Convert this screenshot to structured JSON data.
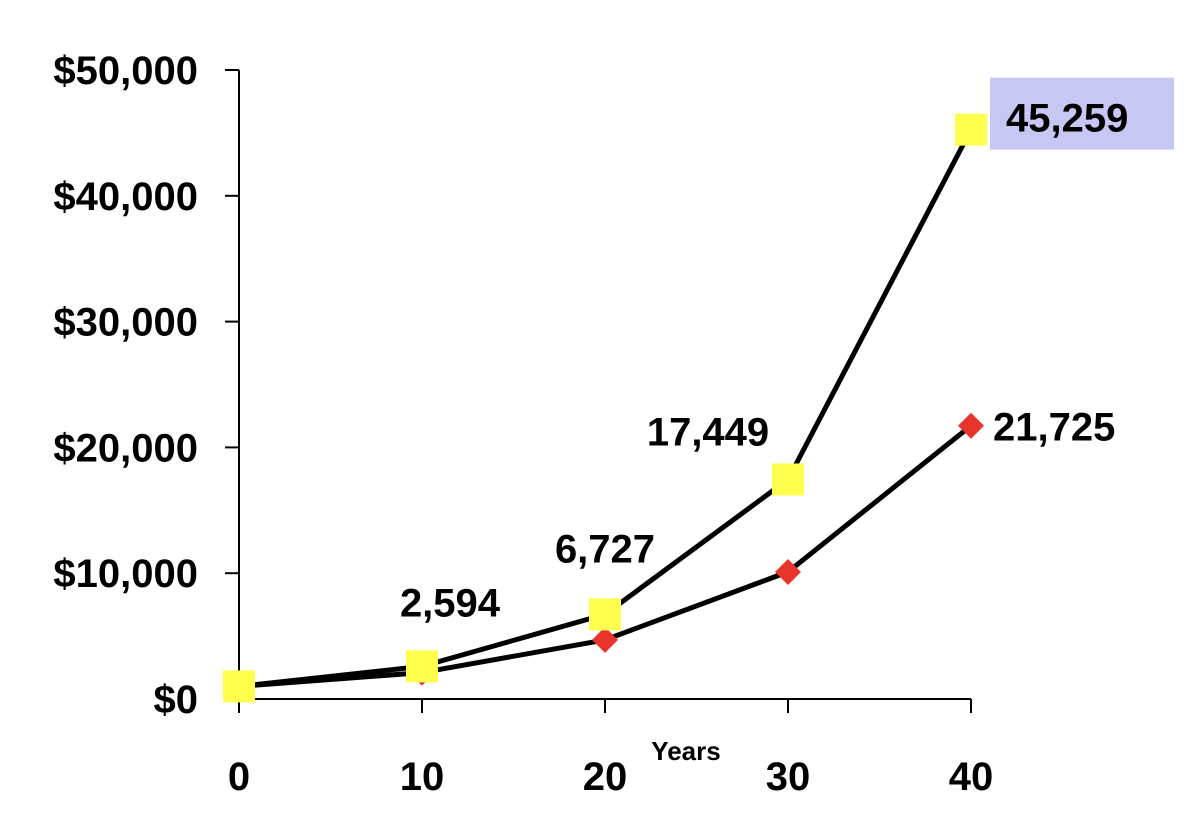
{
  "chart_data": {
    "type": "line",
    "title": "",
    "xlabel": "Years",
    "ylabel": "",
    "x": [
      0,
      10,
      20,
      30,
      40
    ],
    "x_tick_labels": [
      "0",
      "10",
      "20",
      "30",
      "40"
    ],
    "y_tick_labels": [
      "$0",
      "$10,000",
      "$20,000",
      "$30,000",
      "$40,000",
      "$50,000"
    ],
    "xlim": [
      0,
      40
    ],
    "ylim": [
      0,
      50000
    ],
    "y_ticks": [
      0,
      10000,
      20000,
      30000,
      40000,
      50000
    ],
    "grid": false,
    "legend": "none",
    "series": [
      {
        "marker": "diamond",
        "color": "#e8342a",
        "line_color": "#000000",
        "values": [
          1000,
          2100,
          4700,
          10100,
          21725
        ],
        "data_labels": [
          "",
          "",
          "",
          "",
          "21,725"
        ]
      },
      {
        "marker": "square",
        "color": "#ffff4d",
        "line_color": "#000000",
        "values": [
          1000,
          2594,
          6727,
          17449,
          45259
        ],
        "data_labels": [
          "",
          "2,594",
          "6,727",
          "17,449",
          "45,259"
        ],
        "highlight_color": "#c7c7f4"
      }
    ]
  }
}
